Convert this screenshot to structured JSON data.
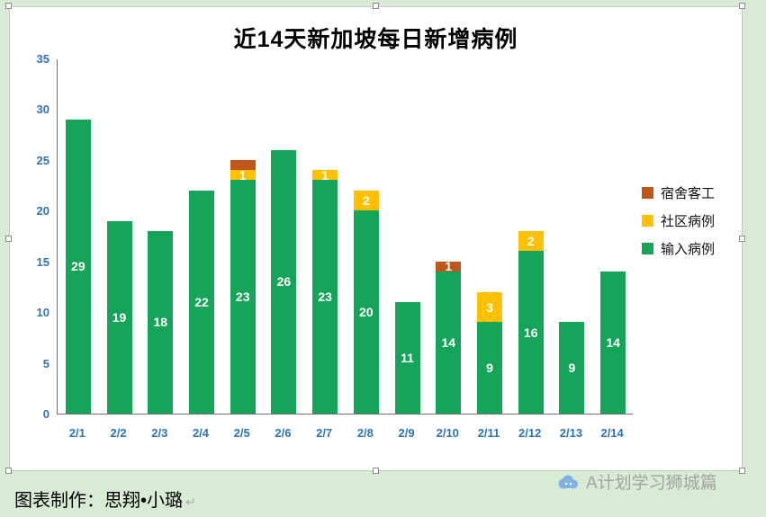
{
  "background_color": "#d8ebd4",
  "chart_data": {
    "type": "bar",
    "stacked": true,
    "title": "近14天新加坡每日新增病例",
    "categories": [
      "2/1",
      "2/2",
      "2/3",
      "2/4",
      "2/5",
      "2/6",
      "2/7",
      "2/8",
      "2/9",
      "2/10",
      "2/11",
      "2/12",
      "2/13",
      "2/14"
    ],
    "series": [
      {
        "name": "输入病例",
        "color": "#16a35a",
        "values": [
          29,
          19,
          18,
          22,
          23,
          26,
          23,
          20,
          11,
          14,
          9,
          16,
          9,
          14
        ],
        "labels": [
          "29",
          "19",
          "18",
          "22",
          "23",
          "26",
          "23",
          "20",
          "11",
          "14",
          "9",
          "16",
          "9",
          "14"
        ]
      },
      {
        "name": "社区病例",
        "color": "#ffc000",
        "values": [
          0,
          0,
          0,
          0,
          1,
          0,
          1,
          2,
          0,
          0,
          3,
          2,
          0,
          0
        ],
        "labels": [
          "",
          "",
          "",
          "",
          "1",
          "",
          "1",
          "2",
          "",
          "",
          "3",
          "2",
          "",
          ""
        ]
      },
      {
        "name": "宿舍客工",
        "color": "#c0561b",
        "values": [
          0,
          0,
          0,
          0,
          1,
          0,
          0,
          0,
          0,
          1,
          0,
          0,
          0,
          0
        ],
        "labels": [
          "",
          "",
          "",
          "",
          "",
          "",
          "",
          "",
          "",
          "1",
          "",
          "",
          "",
          ""
        ]
      }
    ],
    "ylim": [
      0,
      35
    ],
    "yticks": [
      "0",
      "5",
      "10",
      "15",
      "20",
      "25",
      "30",
      "35"
    ],
    "tick_color": "#2e74b5",
    "grid": false,
    "legend_position": "right",
    "legend": [
      {
        "label": "宿舍客工",
        "color": "#c0561b"
      },
      {
        "label": "社区病例",
        "color": "#ffc000"
      },
      {
        "label": "输入病例",
        "color": "#16a35a"
      }
    ]
  },
  "footer": {
    "credit": "图表制作：思翔•小璐",
    "return_mark": "↵"
  },
  "watermark": {
    "text": "A计划学习狮城篇"
  }
}
